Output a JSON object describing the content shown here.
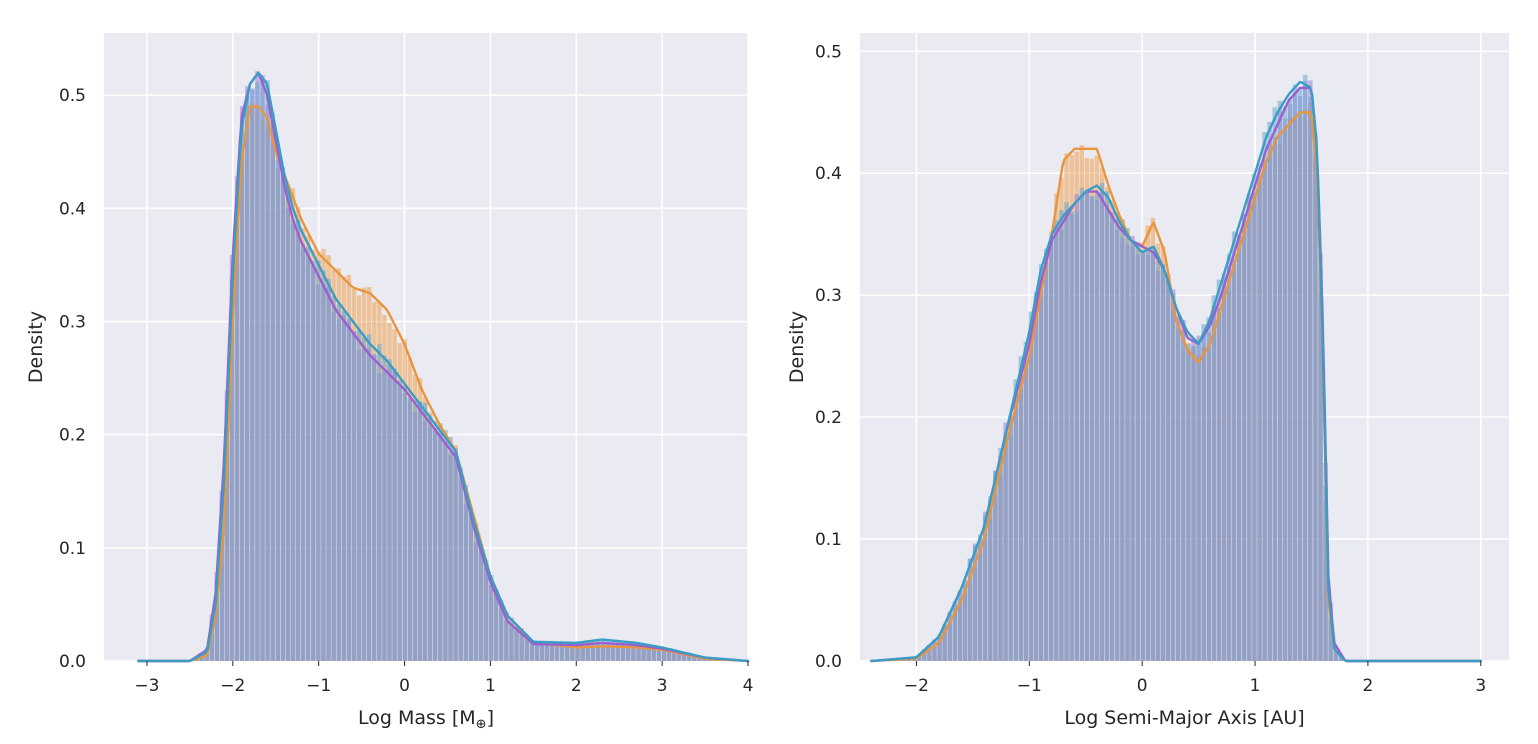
{
  "colors": {
    "orange": "#f0a050",
    "purple": "#a07ed8",
    "blue": "#6aa6cc",
    "kde_orange": "#e8953e",
    "kde_purple": "#9b5fd0",
    "kde_blue": "#3a9ec4",
    "background": "#eaeaf2"
  },
  "chart_data": [
    {
      "type": "area",
      "subtype": "histogram-with-kde",
      "xlabel_main": "Log Mass [M",
      "xlabel_sub": "⊕",
      "xlabel_end": "]",
      "ylabel": "Density",
      "xlim": [
        -3.5,
        4.0
      ],
      "ylim": [
        0,
        0.5
      ],
      "grid": true,
      "x_ticks": [
        -3,
        -2,
        -1,
        0,
        1,
        2,
        3,
        4
      ],
      "y_ticks": [
        0.0,
        0.1,
        0.2,
        0.3,
        0.4,
        0.5
      ],
      "x_tick_labels": [
        "−3",
        "−2",
        "−1",
        "0",
        "1",
        "2",
        "3",
        "4"
      ],
      "y_tick_labels": [
        "0.0",
        "0.1",
        "0.2",
        "0.3",
        "0.4",
        "0.5"
      ],
      "x": [
        -3.1,
        -2.5,
        -2.3,
        -2.2,
        -2.1,
        -2.0,
        -1.9,
        -1.8,
        -1.7,
        -1.6,
        -1.5,
        -1.4,
        -1.3,
        -1.2,
        -1.0,
        -0.8,
        -0.6,
        -0.4,
        -0.2,
        0.0,
        0.2,
        0.4,
        0.6,
        0.8,
        1.0,
        1.2,
        1.5,
        2.0,
        2.3,
        2.7,
        3.0,
        3.5,
        4.0
      ],
      "series": [
        {
          "color_key": "orange",
          "kde_color_key": "kde_orange",
          "values": [
            0,
            0,
            0.005,
            0.04,
            0.12,
            0.3,
            0.44,
            0.49,
            0.49,
            0.48,
            0.45,
            0.43,
            0.41,
            0.39,
            0.36,
            0.345,
            0.33,
            0.325,
            0.31,
            0.28,
            0.24,
            0.21,
            0.185,
            0.13,
            0.075,
            0.04,
            0.016,
            0.012,
            0.013,
            0.012,
            0.01,
            0.002,
            0
          ]
        },
        {
          "color_key": "purple",
          "kde_color_key": "kde_purple",
          "values": [
            0,
            0,
            0.01,
            0.06,
            0.18,
            0.36,
            0.48,
            0.51,
            0.52,
            0.5,
            0.46,
            0.42,
            0.39,
            0.37,
            0.34,
            0.31,
            0.29,
            0.27,
            0.255,
            0.24,
            0.22,
            0.2,
            0.18,
            0.12,
            0.07,
            0.035,
            0.015,
            0.014,
            0.016,
            0.014,
            0.011,
            0.003,
            0
          ]
        },
        {
          "color_key": "blue",
          "kde_color_key": "kde_blue",
          "values": [
            0,
            0,
            0.008,
            0.05,
            0.16,
            0.34,
            0.47,
            0.51,
            0.52,
            0.51,
            0.47,
            0.43,
            0.4,
            0.38,
            0.35,
            0.32,
            0.3,
            0.28,
            0.265,
            0.245,
            0.225,
            0.205,
            0.185,
            0.125,
            0.075,
            0.04,
            0.017,
            0.016,
            0.019,
            0.016,
            0.012,
            0.003,
            0
          ]
        }
      ]
    },
    {
      "type": "area",
      "subtype": "histogram-with-kde",
      "xlabel_main": "Log Semi-Major Axis [AU]",
      "xlabel_sub": "",
      "xlabel_end": "",
      "ylabel": "Density",
      "xlim": [
        -2.5,
        3.25
      ],
      "ylim": [
        0,
        0.5
      ],
      "grid": true,
      "x_ticks": [
        -2,
        -1,
        0,
        1,
        2,
        3
      ],
      "y_ticks": [
        0.0,
        0.1,
        0.2,
        0.3,
        0.4,
        0.5
      ],
      "x_tick_labels": [
        "−2",
        "−1",
        "0",
        "1",
        "2",
        "3"
      ],
      "y_tick_labels": [
        "0.0",
        "0.1",
        "0.2",
        "0.3",
        "0.4",
        "0.5"
      ],
      "x": [
        -2.4,
        -2.0,
        -1.8,
        -1.6,
        -1.4,
        -1.2,
        -1.0,
        -0.9,
        -0.8,
        -0.7,
        -0.6,
        -0.5,
        -0.4,
        -0.3,
        -0.2,
        -0.1,
        0.0,
        0.1,
        0.2,
        0.3,
        0.4,
        0.5,
        0.6,
        0.7,
        0.8,
        0.9,
        1.0,
        1.1,
        1.2,
        1.3,
        1.4,
        1.5,
        1.55,
        1.6,
        1.65,
        1.7,
        1.8,
        2.0,
        3.0
      ],
      "series": [
        {
          "color_key": "orange",
          "kde_color_key": "kde_orange",
          "values": [
            0,
            0.002,
            0.015,
            0.05,
            0.1,
            0.18,
            0.25,
            0.3,
            0.35,
            0.41,
            0.42,
            0.42,
            0.42,
            0.39,
            0.365,
            0.345,
            0.34,
            0.36,
            0.335,
            0.28,
            0.255,
            0.245,
            0.26,
            0.29,
            0.32,
            0.35,
            0.38,
            0.41,
            0.43,
            0.44,
            0.45,
            0.45,
            0.4,
            0.25,
            0.05,
            0.01,
            0,
            0,
            0
          ]
        },
        {
          "color_key": "purple",
          "kde_color_key": "kde_purple",
          "values": [
            0,
            0.003,
            0.02,
            0.06,
            0.11,
            0.19,
            0.26,
            0.31,
            0.345,
            0.36,
            0.375,
            0.385,
            0.385,
            0.37,
            0.355,
            0.345,
            0.34,
            0.335,
            0.32,
            0.29,
            0.265,
            0.26,
            0.275,
            0.3,
            0.33,
            0.36,
            0.39,
            0.42,
            0.44,
            0.46,
            0.47,
            0.47,
            0.42,
            0.28,
            0.07,
            0.015,
            0,
            0,
            0
          ]
        },
        {
          "color_key": "blue",
          "kde_color_key": "kde_blue",
          "values": [
            0,
            0.003,
            0.02,
            0.06,
            0.11,
            0.19,
            0.27,
            0.32,
            0.35,
            0.365,
            0.375,
            0.385,
            0.39,
            0.38,
            0.36,
            0.345,
            0.335,
            0.34,
            0.32,
            0.29,
            0.27,
            0.26,
            0.28,
            0.31,
            0.34,
            0.37,
            0.4,
            0.43,
            0.45,
            0.465,
            0.475,
            0.47,
            0.42,
            0.26,
            0.06,
            0.01,
            0,
            0,
            0
          ]
        }
      ]
    }
  ]
}
